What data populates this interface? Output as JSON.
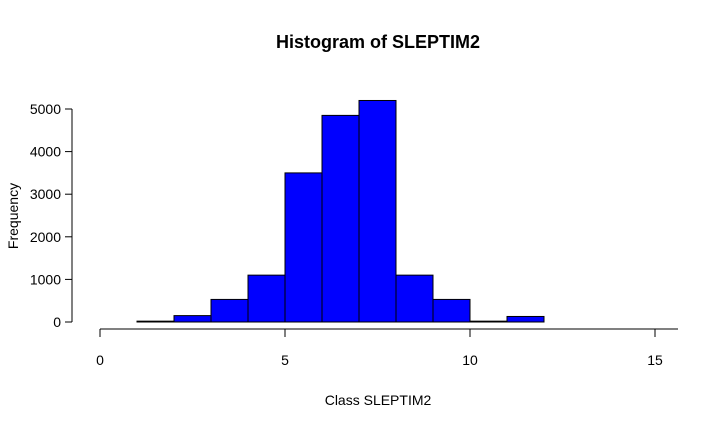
{
  "chart_data": {
    "type": "bar",
    "title": "Histogram of SLEPTIM2",
    "xlabel": "Class SLEPTIM2",
    "ylabel": "Frequency",
    "bar_color": "#0000ff",
    "border_color": "#000000",
    "xlim": [
      0,
      15
    ],
    "ylim": [
      0,
      5000
    ],
    "xticks": [
      0,
      5,
      10,
      15
    ],
    "yticks": [
      0,
      1000,
      2000,
      3000,
      4000,
      5000
    ],
    "bins": [
      {
        "x0": 1,
        "x1": 2,
        "value": 20
      },
      {
        "x0": 2,
        "x1": 3,
        "value": 150
      },
      {
        "x0": 3,
        "x1": 4,
        "value": 530
      },
      {
        "x0": 4,
        "x1": 5,
        "value": 1100
      },
      {
        "x0": 5,
        "x1": 6,
        "value": 3500
      },
      {
        "x0": 6,
        "x1": 7,
        "value": 4850
      },
      {
        "x0": 7,
        "x1": 8,
        "value": 5200
      },
      {
        "x0": 8,
        "x1": 9,
        "value": 1100
      },
      {
        "x0": 9,
        "x1": 10,
        "value": 530
      },
      {
        "x0": 10,
        "x1": 11,
        "value": 20
      },
      {
        "x0": 11,
        "x1": 12,
        "value": 130
      },
      {
        "x0": 12,
        "x1": 13,
        "value": 0
      },
      {
        "x0": 13,
        "x1": 14,
        "value": 0
      },
      {
        "x0": 14,
        "x1": 15,
        "value": 0
      }
    ],
    "grid": false,
    "legend": "none"
  }
}
